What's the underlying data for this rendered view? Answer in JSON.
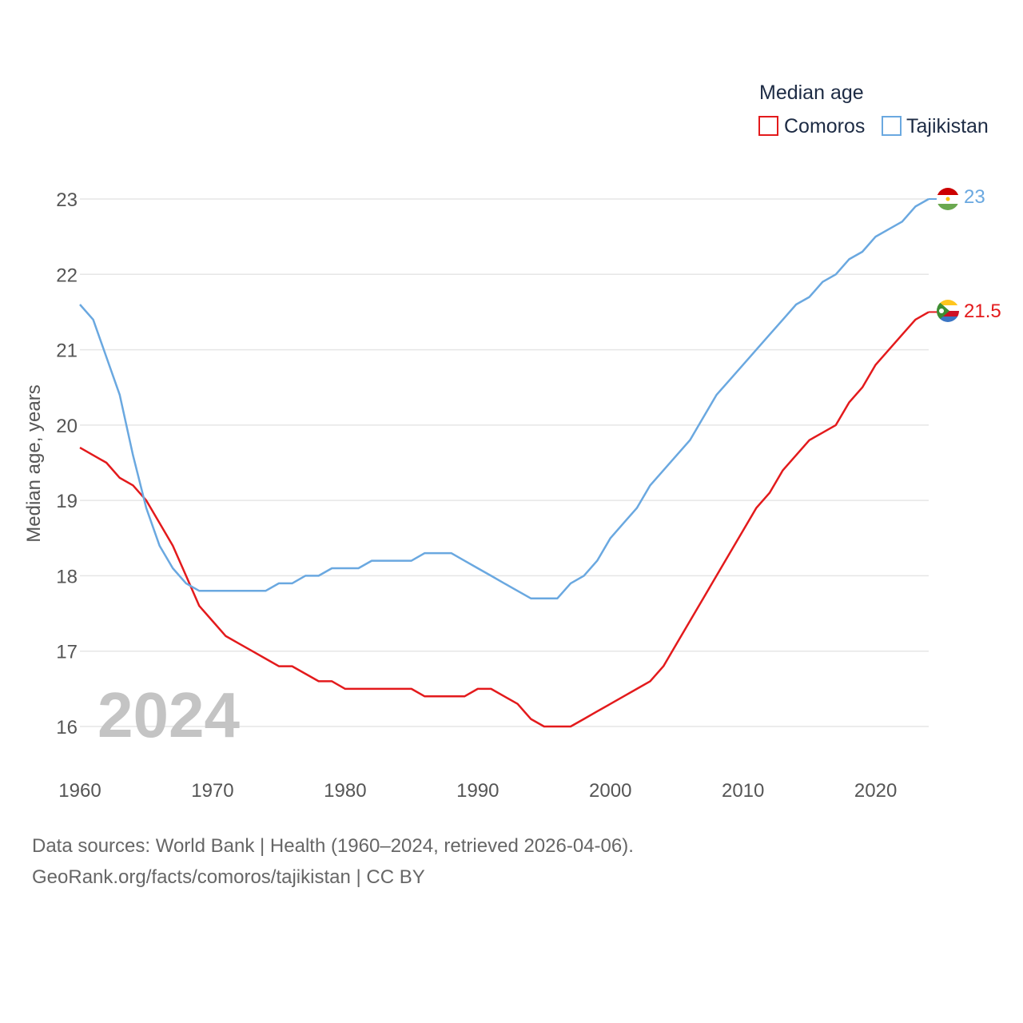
{
  "chart_data": {
    "type": "line",
    "legend_title": "Median age",
    "ylabel": "Median age, years",
    "xlabel": "",
    "xlim": [
      1960,
      2024
    ],
    "ylim": [
      15.5,
      23.5
    ],
    "x_ticks": [
      "1960",
      "1970",
      "1980",
      "1990",
      "2000",
      "2010",
      "2020"
    ],
    "y_ticks": [
      "16",
      "17",
      "18",
      "19",
      "20",
      "21",
      "22",
      "23"
    ],
    "year_label": "2024",
    "legend_placement": "top-right",
    "series": [
      {
        "name": "Comoros",
        "color": "#e31a1c",
        "end_label": "21.5",
        "flag_icon": "comoros-flag-icon",
        "x": [
          1960,
          1961,
          1962,
          1963,
          1964,
          1965,
          1966,
          1967,
          1968,
          1969,
          1970,
          1971,
          1972,
          1973,
          1974,
          1975,
          1976,
          1977,
          1978,
          1979,
          1980,
          1981,
          1982,
          1983,
          1984,
          1985,
          1986,
          1987,
          1988,
          1989,
          1990,
          1991,
          1992,
          1993,
          1994,
          1995,
          1996,
          1997,
          1998,
          1999,
          2000,
          2001,
          2002,
          2003,
          2004,
          2005,
          2006,
          2007,
          2008,
          2009,
          2010,
          2011,
          2012,
          2013,
          2014,
          2015,
          2016,
          2017,
          2018,
          2019,
          2020,
          2021,
          2022,
          2023,
          2024
        ],
        "values": [
          19.7,
          19.6,
          19.5,
          19.3,
          19.2,
          19.0,
          18.7,
          18.4,
          18.0,
          17.6,
          17.4,
          17.2,
          17.1,
          17.0,
          16.9,
          16.8,
          16.8,
          16.7,
          16.6,
          16.6,
          16.5,
          16.5,
          16.5,
          16.5,
          16.5,
          16.5,
          16.4,
          16.4,
          16.4,
          16.4,
          16.5,
          16.5,
          16.4,
          16.3,
          16.1,
          16.0,
          16.0,
          16.0,
          16.1,
          16.2,
          16.3,
          16.4,
          16.5,
          16.6,
          16.8,
          17.1,
          17.4,
          17.7,
          18.0,
          18.3,
          18.6,
          18.9,
          19.1,
          19.4,
          19.6,
          19.8,
          19.9,
          20.0,
          20.3,
          20.5,
          20.8,
          21.0,
          21.2,
          21.4,
          21.5
        ]
      },
      {
        "name": "Tajikistan",
        "color": "#6aa8e0",
        "end_label": "23",
        "flag_icon": "tajikistan-flag-icon",
        "x": [
          1960,
          1961,
          1962,
          1963,
          1964,
          1965,
          1966,
          1967,
          1968,
          1969,
          1970,
          1971,
          1972,
          1973,
          1974,
          1975,
          1976,
          1977,
          1978,
          1979,
          1980,
          1981,
          1982,
          1983,
          1984,
          1985,
          1986,
          1987,
          1988,
          1989,
          1990,
          1991,
          1992,
          1993,
          1994,
          1995,
          1996,
          1997,
          1998,
          1999,
          2000,
          2001,
          2002,
          2003,
          2004,
          2005,
          2006,
          2007,
          2008,
          2009,
          2010,
          2011,
          2012,
          2013,
          2014,
          2015,
          2016,
          2017,
          2018,
          2019,
          2020,
          2021,
          2022,
          2023,
          2024
        ],
        "values": [
          21.6,
          21.4,
          20.9,
          20.4,
          19.6,
          18.9,
          18.4,
          18.1,
          17.9,
          17.8,
          17.8,
          17.8,
          17.8,
          17.8,
          17.8,
          17.9,
          17.9,
          18.0,
          18.0,
          18.1,
          18.1,
          18.1,
          18.2,
          18.2,
          18.2,
          18.2,
          18.3,
          18.3,
          18.3,
          18.2,
          18.1,
          18.0,
          17.9,
          17.8,
          17.7,
          17.7,
          17.7,
          17.9,
          18.0,
          18.2,
          18.5,
          18.7,
          18.9,
          19.2,
          19.4,
          19.6,
          19.8,
          20.1,
          20.4,
          20.6,
          20.8,
          21.0,
          21.2,
          21.4,
          21.6,
          21.7,
          21.9,
          22.0,
          22.2,
          22.3,
          22.5,
          22.6,
          22.7,
          22.9,
          23.0
        ]
      }
    ]
  },
  "footer": {
    "line1": "Data sources: World Bank | Health (1960–2024, retrieved 2026-04-06).",
    "line2": "GeoRank.org/facts/comoros/tajikistan | CC BY"
  }
}
